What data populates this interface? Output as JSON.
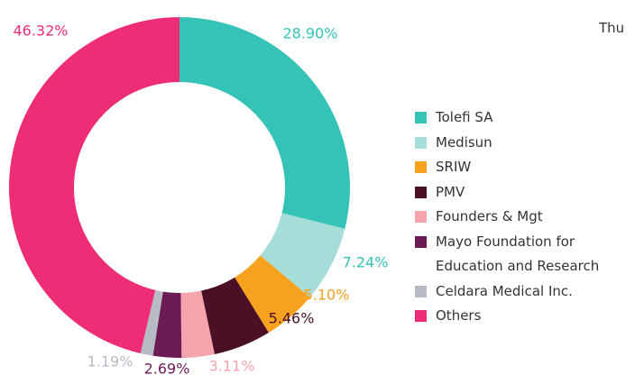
{
  "chart_data": {
    "type": "donut",
    "annotation": "Thu",
    "categories": [
      "Tolefi SA",
      "Medisun",
      "SRIW",
      "PMV",
      "Founders & Mgt",
      "Mayo Foundation for Education and Research",
      "Celdara Medical Inc.",
      "Others"
    ],
    "values": [
      28.9,
      7.24,
      5.1,
      5.46,
      3.11,
      2.69,
      1.19,
      46.32
    ],
    "value_labels": [
      "28.90%",
      "7.24%",
      "5.10%",
      "5.46%",
      "3.11%",
      "2.69%",
      "1.19%",
      "46.32%"
    ],
    "colors": [
      "#34c3b6",
      "#a7ddd8",
      "#f6a21f",
      "#4b0f26",
      "#f5a3ad",
      "#6d1b55",
      "#b6bbc5",
      "#ee2d76"
    ],
    "label_colors": [
      "#34c3b6",
      "#34c3b6",
      "#f6a21f",
      "#4b0f26",
      "#f5a3ad",
      "#6d1b55",
      "#b6bbc5",
      "#ee2d76"
    ]
  }
}
